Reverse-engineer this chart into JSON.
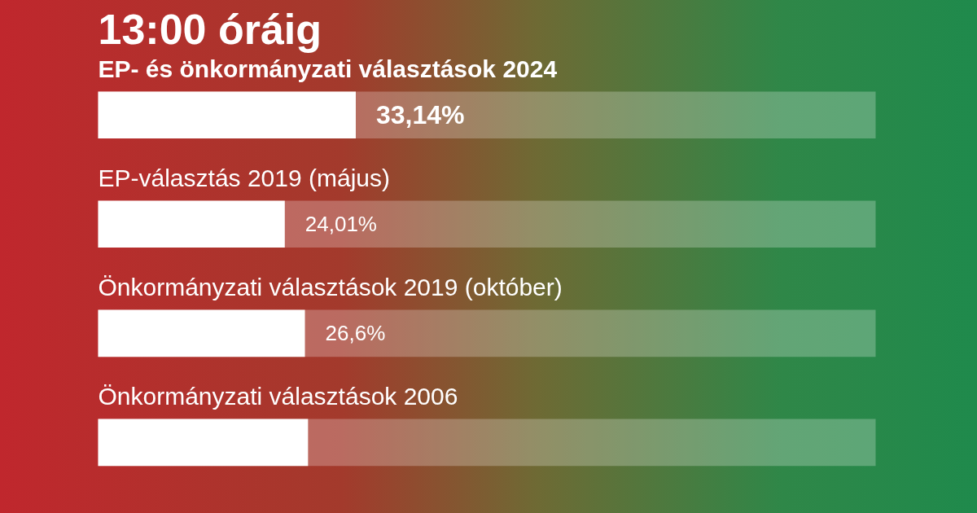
{
  "chart_data": {
    "type": "bar",
    "orientation": "horizontal",
    "title": "13:00 óráig",
    "categories": [
      "EP- és önkormányzati választások 2024",
      "EP-választás 2019 (május)",
      "Önkormányzati választások 2019 (október)",
      "Önkormányzati választások 2006"
    ],
    "values": [
      33.14,
      24.01,
      26.6,
      27.0
    ],
    "value_labels": [
      "33,14%",
      "24,01%",
      "26,6%",
      null
    ],
    "color": "#ffffff",
    "xlim": [
      0,
      100
    ]
  }
}
